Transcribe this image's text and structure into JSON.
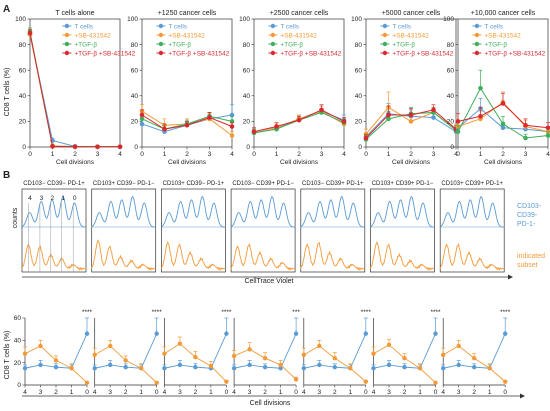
{
  "figure": {
    "panel_labels": [
      "A",
      "B"
    ]
  },
  "colors": {
    "t_cells": "#5b9bd5",
    "sb": "#f39a38",
    "tgf": "#3fae5a",
    "tgf_sb": "#d9282f",
    "subset_fill": "#f39a38",
    "counts_line": "#5b9bd5"
  },
  "panelA": {
    "ylabel": "CD8 T cells (%)",
    "xlabel": "Cell divisions",
    "yticks": [
      "0",
      "20",
      "40",
      "60",
      "80",
      "100"
    ],
    "xticks": [
      "0",
      "1",
      "2",
      "3",
      "4"
    ],
    "legend": [
      "T cells",
      "+SB-431542",
      "+TGF-β",
      "+TGF-β +SB-431542"
    ],
    "chart_data": [
      {
        "type": "line",
        "title": "T cells alone",
        "x": [
          0,
          1,
          2,
          3,
          4
        ],
        "series": [
          {
            "name": "T cells",
            "values": [
              88,
              5,
              0.5,
              0.3,
              0.3
            ],
            "err": [
              3,
              2,
              0.5,
              0.3,
              0.3
            ]
          },
          {
            "name": "+SB-431542",
            "values": [
              88,
              1,
              0.3,
              0.2,
              0.2
            ],
            "err": [
              3,
              1,
              0.3,
              0.2,
              0.2
            ]
          },
          {
            "name": "+TGF-β",
            "values": [
              90,
              0.5,
              0.3,
              0.2,
              0.2
            ],
            "err": [
              3,
              0.5,
              0.3,
              0.2,
              0.2
            ]
          },
          {
            "name": "+TGF-β +SB-431542",
            "values": [
              89,
              0.5,
              0.2,
              0.2,
              0.2
            ],
            "err": [
              3,
              0.5,
              0.2,
              0.2,
              0.2
            ]
          }
        ],
        "ylim": [
          0,
          100
        ]
      },
      {
        "type": "line",
        "title": "+1250 cancer cells",
        "x": [
          0,
          1,
          2,
          3,
          4
        ],
        "series": [
          {
            "name": "T cells",
            "values": [
              18,
              12,
              17,
              22,
              25
            ],
            "err": [
              4,
              3,
              3,
              4,
              8
            ]
          },
          {
            "name": "+SB-431542",
            "values": [
              28,
              17,
              18,
              22,
              9
            ],
            "err": [
              5,
              5,
              4,
              4,
              3
            ]
          },
          {
            "name": "+TGF-β",
            "values": [
              22,
              14,
              18,
              24,
              20
            ],
            "err": [
              4,
              3,
              3,
              3,
              4
            ]
          },
          {
            "name": "+TGF-β +SB-431542",
            "values": [
              25,
              14,
              17,
              23,
              16
            ],
            "err": [
              4,
              4,
              3,
              4,
              3
            ]
          }
        ],
        "ylim": [
          0,
          100
        ]
      },
      {
        "type": "line",
        "title": "+2500 cancer cells",
        "x": [
          0,
          1,
          2,
          3,
          4
        ],
        "series": [
          {
            "name": "T cells",
            "values": [
              11,
              14,
              22,
              28,
              21
            ],
            "err": [
              3,
              2,
              3,
              4,
              4
            ]
          },
          {
            "name": "+SB-431542",
            "values": [
              12,
              15,
              22,
              28,
              18
            ],
            "err": [
              3,
              3,
              3,
              4,
              4
            ]
          },
          {
            "name": "+TGF-β",
            "values": [
              11,
              14,
              21,
              27,
              19
            ],
            "err": [
              3,
              2,
              3,
              3,
              3
            ]
          },
          {
            "name": "+TGF-β +SB-431542",
            "values": [
              12,
              16,
              21,
              29,
              20
            ],
            "err": [
              3,
              3,
              3,
              4,
              3
            ]
          }
        ],
        "ylim": [
          0,
          100
        ]
      },
      {
        "type": "line",
        "title": "+5000 cancer cells",
        "x": [
          0,
          1,
          2,
          3,
          4
        ],
        "series": [
          {
            "name": "T cells",
            "values": [
              8,
              26,
              24,
              23,
              12
            ],
            "err": [
              3,
              8,
              5,
              4,
              3
            ]
          },
          {
            "name": "+SB-431542",
            "values": [
              10,
              31,
              20,
              27,
              14
            ],
            "err": [
              4,
              12,
              6,
              4,
              4
            ]
          },
          {
            "name": "+TGF-β",
            "values": [
              6,
              22,
              26,
              27,
              13
            ],
            "err": [
              3,
              6,
              5,
              4,
              3
            ]
          },
          {
            "name": "+TGF-β +SB-431542",
            "values": [
              7,
              25,
              25,
              29,
              14
            ],
            "err": [
              3,
              7,
              5,
              4,
              3
            ]
          }
        ],
        "ylim": [
          0,
          100
        ]
      },
      {
        "type": "line",
        "title": "+10,000 cancer cells",
        "x": [
          0,
          1,
          2,
          3,
          4
        ],
        "series": [
          {
            "name": "T cells",
            "values": [
              15,
              30,
              15,
              14,
              12
            ],
            "err": [
              5,
              8,
              4,
              4,
              3
            ]
          },
          {
            "name": "+SB-431542",
            "values": [
              16,
              22,
              35,
              16,
              12
            ],
            "err": [
              5,
              6,
              8,
              5,
              4
            ]
          },
          {
            "name": "+TGF-β",
            "values": [
              12,
              46,
              18,
              7,
              9
            ],
            "err": [
              5,
              14,
              6,
              3,
              3
            ]
          },
          {
            "name": "+TGF-β +SB-431542",
            "values": [
              20,
              24,
              34,
              17,
              15
            ],
            "err": [
              6,
              7,
              8,
              5,
              4
            ]
          }
        ],
        "ylim": [
          0,
          100
        ]
      }
    ]
  },
  "panelB_hist": {
    "subsets": [
      "CD103− CD39− PD-1+",
      "CD103+ CD39− PD-1−",
      "CD103+ CD39− PD-1+",
      "CD103− CD39+ PD-1−",
      "CD103− CD39+ PD-1+",
      "CD103+ CD39+ PD-1−",
      "CD103+ CD39+ PD-1+"
    ],
    "division_marks": [
      "4",
      "3",
      "2",
      "1",
      "0"
    ],
    "ylabel": "counts",
    "xlabel": "CellTrace Violet",
    "legend_ref": "CD103-\nCD39-\nPD-1-",
    "legend_ref_lines": [
      "CD103-",
      "CD39-",
      "PD-1-"
    ],
    "legend_subset_lines": [
      "indicated",
      "subset"
    ]
  },
  "panelB_lines": {
    "ylabel": "CD8 T cells (%)",
    "xlabel": "Cell divisions",
    "yticks": [
      "0",
      "20",
      "40",
      "60"
    ],
    "xticks": [
      "4",
      "3",
      "2",
      "1",
      "0"
    ],
    "chart_data": {
      "type": "line",
      "x": [
        4,
        3,
        2,
        1,
        0
      ],
      "panels": [
        {
          "subset": "CD103− CD39− PD-1+",
          "ref": [
            15,
            18,
            16,
            15,
            46
          ],
          "ref_err": [
            3,
            4,
            3,
            3,
            15
          ],
          "subset_values": [
            28,
            35,
            22,
            15,
            2
          ],
          "subset_err": [
            6,
            5,
            4,
            4,
            1
          ],
          "significance": "****"
        },
        {
          "subset": "CD103+ CD39− PD-1−",
          "ref": [
            15,
            18,
            16,
            15,
            46
          ],
          "ref_err": [
            3,
            4,
            3,
            3,
            15
          ],
          "subset_values": [
            27,
            35,
            22,
            15,
            2
          ],
          "subset_err": [
            6,
            5,
            4,
            4,
            1
          ],
          "significance": "****"
        },
        {
          "subset": "CD103+ CD39− PD-1+",
          "ref": [
            15,
            18,
            16,
            15,
            46
          ],
          "ref_err": [
            3,
            4,
            3,
            3,
            15
          ],
          "subset_values": [
            28,
            37,
            25,
            17,
            3
          ],
          "subset_err": [
            6,
            6,
            5,
            4,
            1
          ],
          "significance": "****"
        },
        {
          "subset": "CD103− CD39+ PD-1−",
          "ref": [
            15,
            18,
            16,
            15,
            46
          ],
          "ref_err": [
            3,
            4,
            3,
            3,
            15
          ],
          "subset_values": [
            26,
            32,
            24,
            18,
            5
          ],
          "subset_err": [
            5,
            6,
            5,
            4,
            2
          ],
          "significance": "***"
        },
        {
          "subset": "CD103− CD39+ PD-1+",
          "ref": [
            15,
            18,
            16,
            15,
            46
          ],
          "ref_err": [
            3,
            4,
            3,
            3,
            15
          ],
          "subset_values": [
            27,
            35,
            24,
            15,
            3
          ],
          "subset_err": [
            6,
            5,
            5,
            4,
            1
          ],
          "significance": "****"
        },
        {
          "subset": "CD103+ CD39+ PD-1−",
          "ref": [
            15,
            18,
            16,
            15,
            46
          ],
          "ref_err": [
            3,
            4,
            3,
            3,
            15
          ],
          "subset_values": [
            28,
            36,
            24,
            15,
            2
          ],
          "subset_err": [
            6,
            5,
            4,
            4,
            1
          ],
          "significance": "****"
        },
        {
          "subset": "CD103+ CD39+ PD-1+",
          "ref": [
            15,
            18,
            16,
            15,
            46
          ],
          "ref_err": [
            3,
            4,
            3,
            3,
            15
          ],
          "subset_values": [
            27,
            35,
            24,
            15,
            3
          ],
          "subset_err": [
            6,
            5,
            4,
            4,
            1
          ],
          "significance": "****"
        }
      ],
      "ylim": [
        0,
        60
      ]
    }
  }
}
